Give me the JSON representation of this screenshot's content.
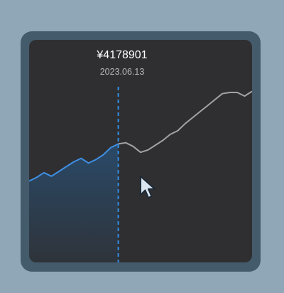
{
  "readout": {
    "price": "¥4178901",
    "date": "2023.06.13"
  },
  "chart_data": {
    "type": "line",
    "title": "",
    "xlabel": "",
    "ylabel": "",
    "series": [
      {
        "values": [
          8,
          11,
          15,
          12,
          16,
          20,
          24,
          27,
          23,
          26,
          30,
          36,
          39,
          40,
          37,
          32,
          34,
          38,
          42,
          47,
          50,
          56,
          61,
          66,
          71,
          76,
          81,
          82,
          82,
          79,
          83
        ]
      }
    ],
    "highlight_index": 12,
    "ylim": [
      -60,
      126
    ],
    "colors": {
      "past_line": "#3f8fe3",
      "future_line": "#a2a3a5",
      "area": "#2a4b6b",
      "crosshair": "#2f8fe8"
    }
  },
  "icons": {
    "cursor": "mouse-pointer-icon"
  }
}
